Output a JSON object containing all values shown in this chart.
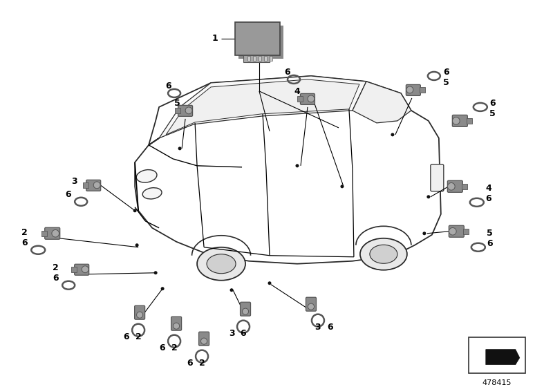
{
  "bg_color": "#ffffff",
  "diagram_number": "478415",
  "car_outline_color": "#2a2a2a",
  "sensor_color": "#888888",
  "sensor_dark": "#666666",
  "sensor_face": "#aaaaaa",
  "label_color": "#000000",
  "line_color": "#000000",
  "ring_color": "#555555"
}
